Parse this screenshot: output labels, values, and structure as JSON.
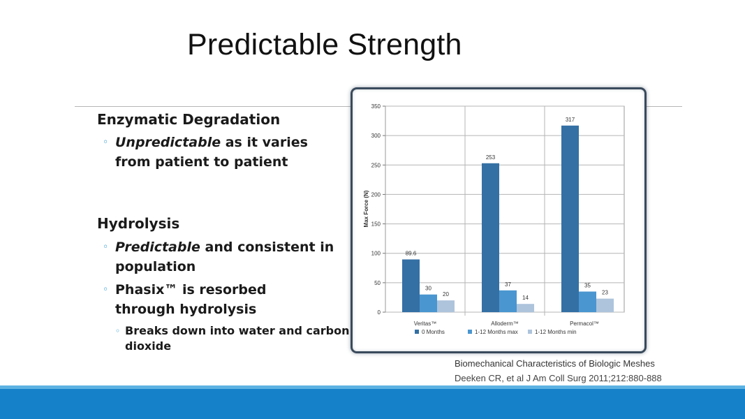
{
  "slide": {
    "title": "Predictable Strength",
    "bullets": {
      "enzymatic": {
        "heading": "Enzymatic Degradation",
        "point_emph": "Unpredictable",
        "point_rest": " as it varies from patient to patient"
      },
      "hydrolysis": {
        "heading": "Hydrolysis",
        "point1_emph": "Predictable",
        "point1_rest": " and consistent in population",
        "point2": "Phasix™ is resorbed through hydrolysis",
        "point2_sub": "Breaks down into water and carbon dioxide"
      }
    },
    "bullet_glyph": "◦",
    "citation": {
      "line1": "Biomechanical Characteristics of Biologic Meshes",
      "line2": "Deeken CR, et al J Am Coll Surg 2011;212:880-888"
    }
  },
  "chart_data": {
    "type": "bar",
    "categories": [
      "Veritas™",
      "Alloderm™",
      "Permacol™"
    ],
    "series": [
      {
        "name": "0 Months",
        "values": [
          89.6,
          253,
          317
        ],
        "labels": [
          "89.6",
          "253",
          "317"
        ],
        "color": "#3470a4"
      },
      {
        "name": "1-12 Months max",
        "values": [
          30,
          37,
          35
        ],
        "labels": [
          "30",
          "37",
          "35"
        ],
        "color": "#4a96d0"
      },
      {
        "name": "1-12 Months min",
        "values": [
          20,
          14,
          23
        ],
        "labels": [
          "20",
          "14",
          "23"
        ],
        "color": "#aec4dc"
      }
    ],
    "ylabel": "Max Force (N)",
    "ylim": [
      0,
      350
    ],
    "yticks": [
      0,
      50,
      100,
      150,
      200,
      250,
      300,
      350
    ],
    "grid": true,
    "legend_position": "bottom"
  },
  "colors": {
    "accent_band": "#1581c8",
    "accent_thin": "#5cb2e2",
    "frame_border": "#3a4a5c",
    "bullet_color": "#1b8fcc"
  }
}
